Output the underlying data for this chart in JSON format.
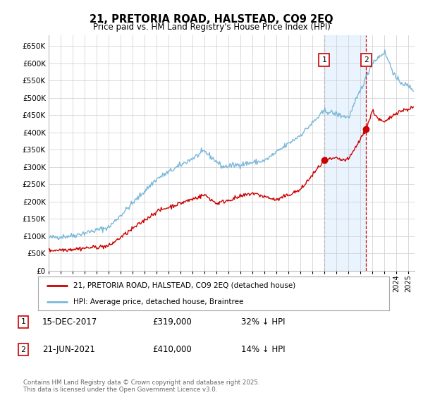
{
  "title": "21, PRETORIA ROAD, HALSTEAD, CO9 2EQ",
  "subtitle": "Price paid vs. HM Land Registry's House Price Index (HPI)",
  "ylim": [
    0,
    680000
  ],
  "yticks": [
    0,
    50000,
    100000,
    150000,
    200000,
    250000,
    300000,
    350000,
    400000,
    450000,
    500000,
    550000,
    600000,
    650000
  ],
  "xlim_start": 1995.0,
  "xlim_end": 2025.5,
  "hpi_color": "#7ab8d9",
  "price_color": "#cc0000",
  "marker1_x": 2017.96,
  "marker1_y": 319000,
  "marker1_label": "1",
  "marker2_x": 2021.47,
  "marker2_y": 410000,
  "marker2_label": "2",
  "legend_red_label": "21, PRETORIA ROAD, HALSTEAD, CO9 2EQ (detached house)",
  "legend_blue_label": "HPI: Average price, detached house, Braintree",
  "table_entries": [
    {
      "num": "1",
      "date": "15-DEC-2017",
      "price": "£319,000",
      "pct": "32% ↓ HPI"
    },
    {
      "num": "2",
      "date": "21-JUN-2021",
      "price": "£410,000",
      "pct": "14% ↓ HPI"
    }
  ],
  "footnote": "Contains HM Land Registry data © Crown copyright and database right 2025.\nThis data is licensed under the Open Government Licence v3.0.",
  "background_color": "#ffffff",
  "grid_color": "#cccccc",
  "shade_color": "#ddeeff"
}
